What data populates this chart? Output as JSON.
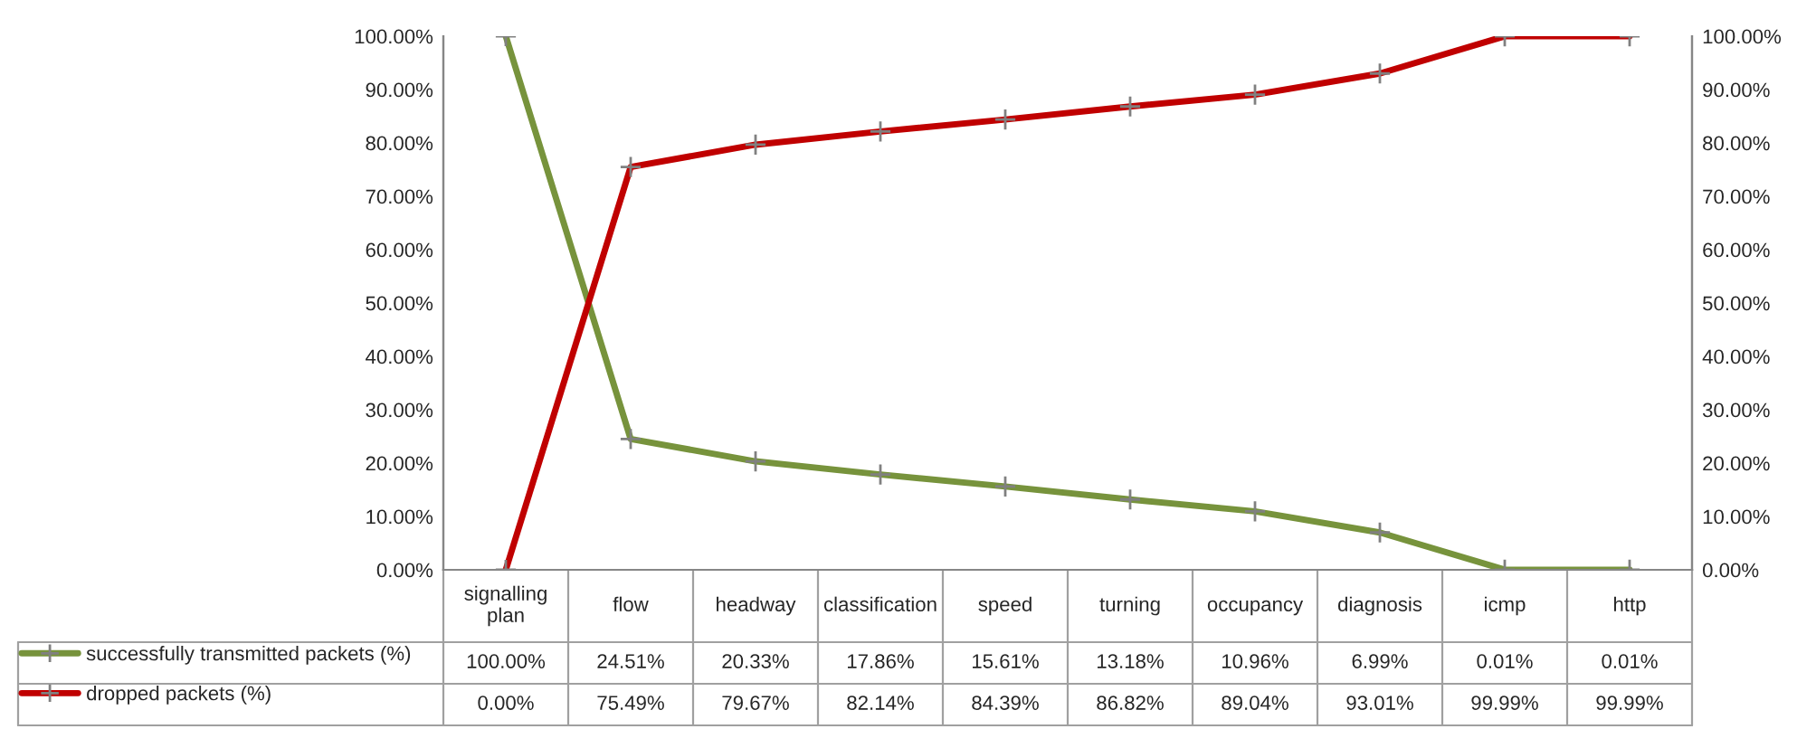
{
  "chart_data": {
    "type": "line",
    "categories": [
      "signalling\nplan",
      "flow",
      "headway",
      "classification",
      "speed",
      "turning",
      "occupancy",
      "diagnosis",
      "icmp",
      "http"
    ],
    "series": [
      {
        "name": "successfully transmitted packets (%)",
        "color": "#77933c",
        "values": [
          100,
          24.51,
          20.33,
          17.86,
          15.61,
          13.18,
          10.96,
          6.99,
          0.01,
          0.01
        ],
        "value_labels": [
          "100.00%",
          "24.51%",
          "20.33%",
          "17.86%",
          "15.61%",
          "13.18%",
          "10.96%",
          "6.99%",
          "0.01%",
          "0.01%"
        ]
      },
      {
        "name": "dropped packets (%)",
        "color": "#c00000",
        "values": [
          0,
          75.49,
          79.67,
          82.14,
          84.39,
          86.82,
          89.04,
          93.01,
          99.99,
          99.99
        ],
        "value_labels": [
          "0.00%",
          "75.49%",
          "79.67%",
          "82.14%",
          "84.39%",
          "86.82%",
          "89.04%",
          "93.01%",
          "99.99%",
          "99.99%"
        ]
      }
    ],
    "ylim": [
      0,
      100
    ],
    "yticks": [
      {
        "value": 0,
        "label": "0.00%"
      },
      {
        "value": 10,
        "label": "10.00%"
      },
      {
        "value": 20,
        "label": "20.00%"
      },
      {
        "value": 30,
        "label": "30.00%"
      },
      {
        "value": 40,
        "label": "40.00%"
      },
      {
        "value": 50,
        "label": "50.00%"
      },
      {
        "value": 60,
        "label": "60.00%"
      },
      {
        "value": 70,
        "label": "70.00%"
      },
      {
        "value": 80,
        "label": "80.00%"
      },
      {
        "value": 90,
        "label": "90.00%"
      },
      {
        "value": 100,
        "label": "100.00%"
      }
    ],
    "y2lim": [
      0,
      100
    ],
    "y2ticks": [
      {
        "value": 0,
        "label": "0.00%"
      },
      {
        "value": 10,
        "label": "10.00%"
      },
      {
        "value": 20,
        "label": "20.00%"
      },
      {
        "value": 30,
        "label": "30.00%"
      },
      {
        "value": 40,
        "label": "40.00%"
      },
      {
        "value": 50,
        "label": "50.00%"
      },
      {
        "value": 60,
        "label": "60.00%"
      },
      {
        "value": 70,
        "label": "70.00%"
      },
      {
        "value": 80,
        "label": "80.00%"
      },
      {
        "value": 90,
        "label": "90.00%"
      },
      {
        "value": 100,
        "label": "100.00%"
      }
    ],
    "marker": "cross",
    "line_style": "solid",
    "grid": false,
    "legend": "bottom left"
  }
}
